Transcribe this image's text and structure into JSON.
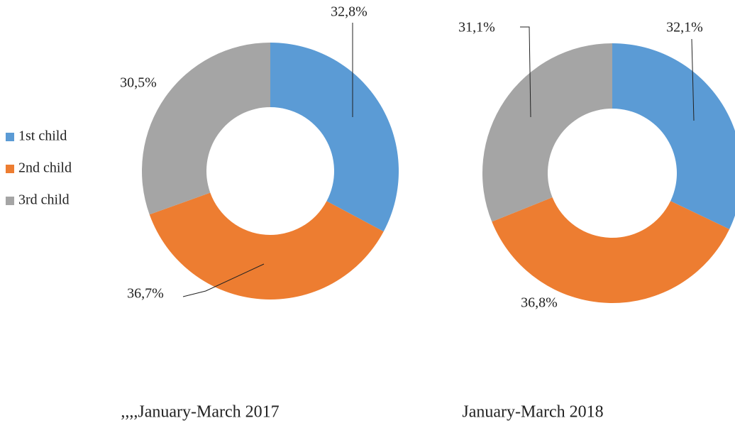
{
  "chart_data": [
    {
      "type": "donut",
      "title": ",,,,January-March 2017",
      "categories": [
        "1st child",
        "2nd child",
        "3rd child"
      ],
      "values": [
        32.8,
        36.7,
        30.5
      ],
      "value_labels": [
        "32,8%",
        "36,7%",
        "30,5%"
      ],
      "colors": [
        "#5b9bd5",
        "#ed7d31",
        "#a5a5a5"
      ]
    },
    {
      "type": "donut",
      "title": "January-March 2018",
      "values": [
        32.1,
        36.8,
        31.1
      ],
      "value_labels": [
        "32,1%",
        "36,8%",
        "31,1%"
      ],
      "colors": [
        "#5b9bd5",
        "#ed7d31",
        "#a5a5a5"
      ]
    }
  ]
}
